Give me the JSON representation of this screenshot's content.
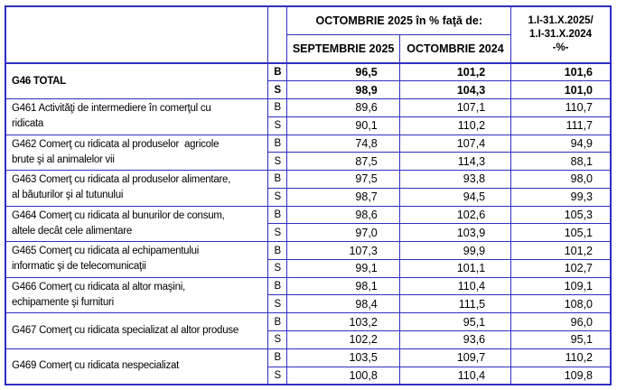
{
  "colors": {
    "border": "#2f2fc0"
  },
  "table": {
    "header": {
      "comparison_title": "OCTOMBRIE 2025 în % faţă de:",
      "col_septembrie": "SEPTEMBRIE 2025",
      "col_octombrie": "OCTOMBRIE 2024",
      "period_column": "1.I-31.X.2025/\n1.I-31.X.2024\n-%-"
    },
    "bs_labels": [
      "B",
      "S"
    ],
    "rows": [
      {
        "label": "G46 TOTAL",
        "bold": true,
        "b": [
          "96,5",
          "101,2",
          "101,6"
        ],
        "s": [
          "98,9",
          "104,3",
          "101,0"
        ]
      },
      {
        "label": "G461 Activităţi de intermediere în comerţul cu\nridicata",
        "bold": false,
        "b": [
          "89,6",
          "107,1",
          "110,7"
        ],
        "s": [
          "90,1",
          "110,2",
          "111,7"
        ]
      },
      {
        "label": "G462 Comerţ cu ridicata al produselor  agricole\nbrute şi al animalelor vii",
        "bold": false,
        "b": [
          "74,8",
          "107,4",
          "94,9"
        ],
        "s": [
          "87,5",
          "114,3",
          "88,1"
        ]
      },
      {
        "label": "G463 Comerţ cu ridicata al produselor alimentare,\nal băuturilor şi al tutunului",
        "bold": false,
        "b": [
          "97,5",
          "93,8",
          "98,0"
        ],
        "s": [
          "98,7",
          "94,5",
          "99,3"
        ]
      },
      {
        "label": "G464 Comerţ cu ridicata al bunurilor de consum,\naltele decât cele alimentare",
        "bold": false,
        "b": [
          "98,6",
          "102,6",
          "105,3"
        ],
        "s": [
          "97,0",
          "103,9",
          "105,1"
        ]
      },
      {
        "label": "G465 Comerţ cu ridicata al echipamentului\ninformatic şi de telecomunicaţii",
        "bold": false,
        "b": [
          "107,3",
          "99,9",
          "101,2"
        ],
        "s": [
          "99,1",
          "101,1",
          "102,7"
        ]
      },
      {
        "label": "G466 Comerţ cu ridicata al altor maşini,\nechipamente şi furnituri",
        "bold": false,
        "b": [
          "98,1",
          "110,4",
          "109,1"
        ],
        "s": [
          "98,4",
          "111,5",
          "108,0"
        ]
      },
      {
        "label": "G467 Comerţ cu ridicata specializat al altor produse",
        "bold": false,
        "b": [
          "103,2",
          "95,1",
          "96,0"
        ],
        "s": [
          "102,2",
          "93,6",
          "95,1"
        ]
      },
      {
        "label": "G469 Comerţ cu ridicata nespecializat",
        "bold": false,
        "b": [
          "103,5",
          "109,7",
          "110,2"
        ],
        "s": [
          "100,8",
          "110,4",
          "109,8"
        ]
      }
    ]
  }
}
